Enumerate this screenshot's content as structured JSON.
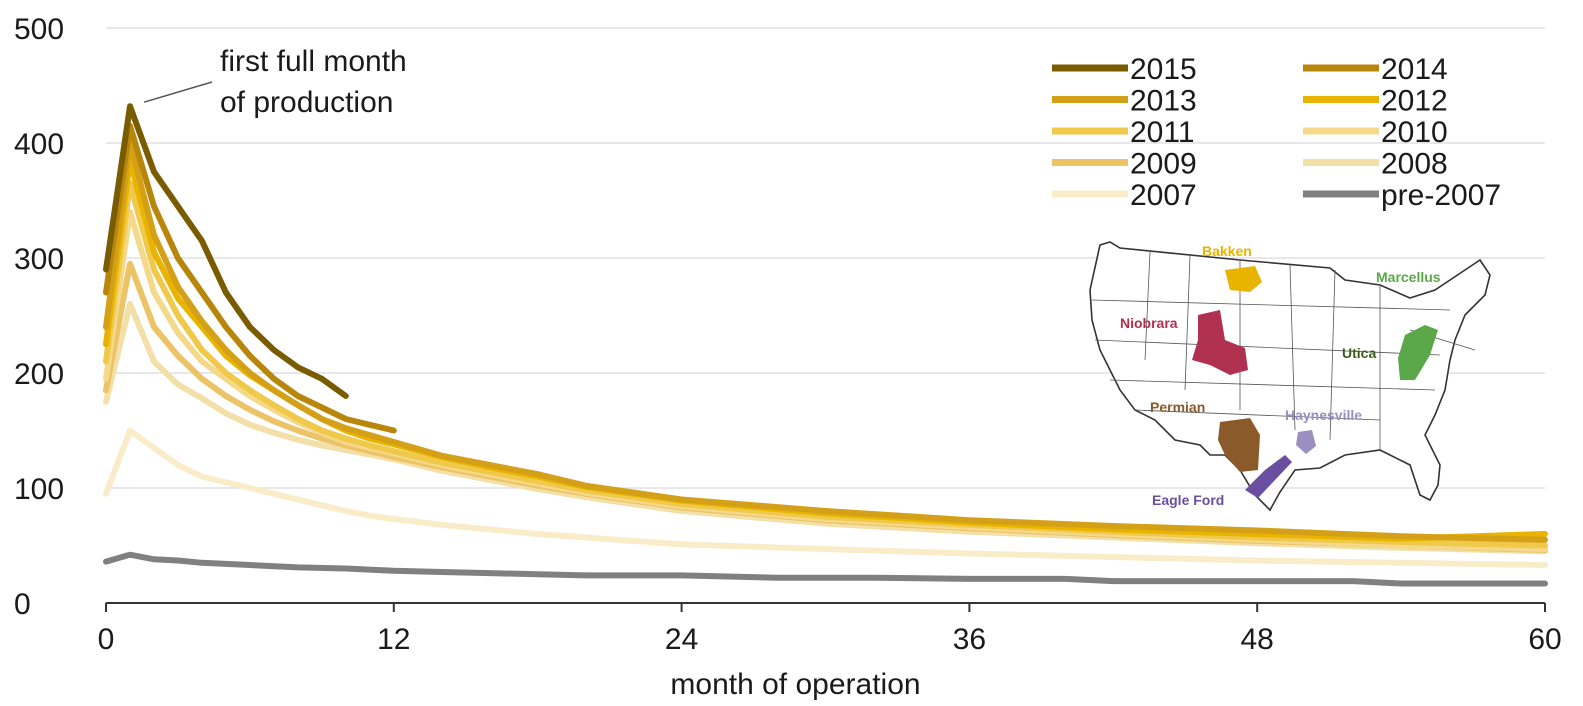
{
  "chart_data": {
    "type": "line",
    "xlabel": "month of operation",
    "xlim": [
      0,
      60
    ],
    "ylim": [
      0,
      500
    ],
    "x_ticks": [
      0,
      12,
      24,
      36,
      48,
      60
    ],
    "y_ticks": [
      0,
      100,
      200,
      300,
      400,
      500
    ],
    "grid": "horizontal",
    "legend_position": "top-right",
    "legend_columns": 2,
    "annotation": {
      "lines": [
        "first full month",
        "of production"
      ],
      "points_to": {
        "x": 1,
        "y": 432
      }
    },
    "series": [
      {
        "name": "2015",
        "color": "#7a5c00",
        "x": [
          0,
          1,
          2,
          3,
          4,
          5,
          6,
          7,
          8,
          9,
          10
        ],
        "y": [
          290,
          432,
          375,
          345,
          315,
          270,
          240,
          220,
          205,
          195,
          180
        ]
      },
      {
        "name": "2014",
        "color": "#b8860b",
        "x": [
          0,
          1,
          2,
          3,
          4,
          5,
          6,
          7,
          8,
          9,
          10,
          11,
          12
        ],
        "y": [
          270,
          415,
          345,
          300,
          270,
          240,
          215,
          195,
          180,
          170,
          160,
          155,
          150
        ]
      },
      {
        "name": "2013",
        "color": "#d4a017",
        "x": [
          0,
          1,
          2,
          3,
          4,
          5,
          6,
          7,
          8,
          9,
          10,
          11,
          12,
          14,
          16,
          18,
          20,
          22,
          24,
          30,
          36,
          42,
          48,
          54,
          60
        ],
        "y": [
          240,
          400,
          320,
          275,
          245,
          220,
          200,
          185,
          172,
          160,
          152,
          146,
          140,
          128,
          120,
          112,
          102,
          96,
          90,
          80,
          72,
          67,
          63,
          58,
          55
        ]
      },
      {
        "name": "2012",
        "color": "#e8b400",
        "x": [
          0,
          1,
          2,
          3,
          4,
          5,
          6,
          7,
          8,
          9,
          10,
          11,
          12,
          14,
          16,
          18,
          20,
          22,
          24,
          30,
          36,
          42,
          48,
          54,
          60
        ],
        "y": [
          225,
          385,
          305,
          265,
          240,
          215,
          198,
          185,
          172,
          160,
          150,
          143,
          138,
          127,
          118,
          110,
          101,
          95,
          89,
          78,
          70,
          64,
          60,
          56,
          60
        ]
      },
      {
        "name": "2011",
        "color": "#f0c84a",
        "x": [
          0,
          1,
          2,
          3,
          4,
          5,
          6,
          7,
          8,
          9,
          10,
          11,
          12,
          14,
          16,
          18,
          20,
          22,
          24,
          30,
          36,
          42,
          48,
          54,
          60
        ],
        "y": [
          210,
          365,
          290,
          250,
          220,
          200,
          185,
          172,
          160,
          150,
          143,
          137,
          132,
          122,
          114,
          106,
          98,
          92,
          86,
          75,
          68,
          62,
          57,
          53,
          50
        ]
      },
      {
        "name": "2010",
        "color": "#f5d98a",
        "x": [
          0,
          1,
          2,
          3,
          4,
          5,
          6,
          7,
          8,
          9,
          10,
          11,
          12,
          14,
          16,
          18,
          20,
          22,
          24,
          30,
          36,
          42,
          48,
          54,
          60
        ],
        "y": [
          195,
          340,
          270,
          235,
          210,
          195,
          180,
          168,
          157,
          148,
          140,
          135,
          130,
          120,
          112,
          104,
          96,
          90,
          84,
          73,
          66,
          60,
          55,
          50,
          47
        ]
      },
      {
        "name": "2009",
        "color": "#ecc366",
        "x": [
          0,
          1,
          2,
          3,
          4,
          5,
          6,
          7,
          8,
          9,
          10,
          11,
          12,
          14,
          16,
          18,
          20,
          22,
          24,
          30,
          36,
          42,
          48,
          54,
          60
        ],
        "y": [
          185,
          295,
          240,
          215,
          195,
          180,
          168,
          158,
          150,
          143,
          137,
          132,
          127,
          118,
          110,
          102,
          95,
          89,
          83,
          72,
          65,
          59,
          54,
          50,
          46
        ]
      },
      {
        "name": "2008",
        "color": "#f3dfa8",
        "x": [
          0,
          1,
          2,
          3,
          4,
          5,
          6,
          7,
          8,
          9,
          10,
          11,
          12,
          14,
          16,
          18,
          20,
          22,
          24,
          30,
          36,
          42,
          48,
          54,
          60
        ],
        "y": [
          175,
          260,
          210,
          190,
          178,
          165,
          155,
          148,
          142,
          137,
          133,
          129,
          125,
          115,
          107,
          99,
          92,
          86,
          80,
          69,
          62,
          57,
          52,
          48,
          45
        ]
      },
      {
        "name": "2007",
        "color": "#f9ecc8",
        "x": [
          0,
          1,
          2,
          3,
          4,
          5,
          6,
          7,
          8,
          9,
          10,
          11,
          12,
          14,
          16,
          18,
          20,
          22,
          24,
          30,
          36,
          42,
          48,
          54,
          60
        ],
        "y": [
          95,
          150,
          135,
          120,
          110,
          105,
          100,
          95,
          90,
          85,
          80,
          76,
          73,
          68,
          64,
          60,
          57,
          54,
          51,
          47,
          43,
          40,
          37,
          35,
          33
        ]
      },
      {
        "name": "pre-2007",
        "color": "#808080",
        "x": [
          0,
          1,
          2,
          3,
          4,
          6,
          8,
          10,
          12,
          14,
          16,
          18,
          20,
          24,
          28,
          32,
          36,
          40,
          42,
          44,
          48,
          52,
          54,
          56,
          60
        ],
        "y": [
          36,
          42,
          38,
          37,
          35,
          33,
          31,
          30,
          28,
          27,
          26,
          25,
          24,
          24,
          22,
          22,
          21,
          21,
          19,
          19,
          19,
          19,
          17,
          17,
          17
        ]
      }
    ]
  },
  "map": {
    "labels": [
      {
        "name": "Bakken",
        "color": "#e8b400"
      },
      {
        "name": "Marcellus",
        "color": "#5aa84a"
      },
      {
        "name": "Niobrara",
        "color": "#b03050"
      },
      {
        "name": "Utica",
        "color": "#3c5a1e"
      },
      {
        "name": "Permian",
        "color": "#8b5a2b"
      },
      {
        "name": "Haynesville",
        "color": "#9a8fc0"
      },
      {
        "name": "Eagle Ford",
        "color": "#6a4fa0"
      }
    ]
  }
}
